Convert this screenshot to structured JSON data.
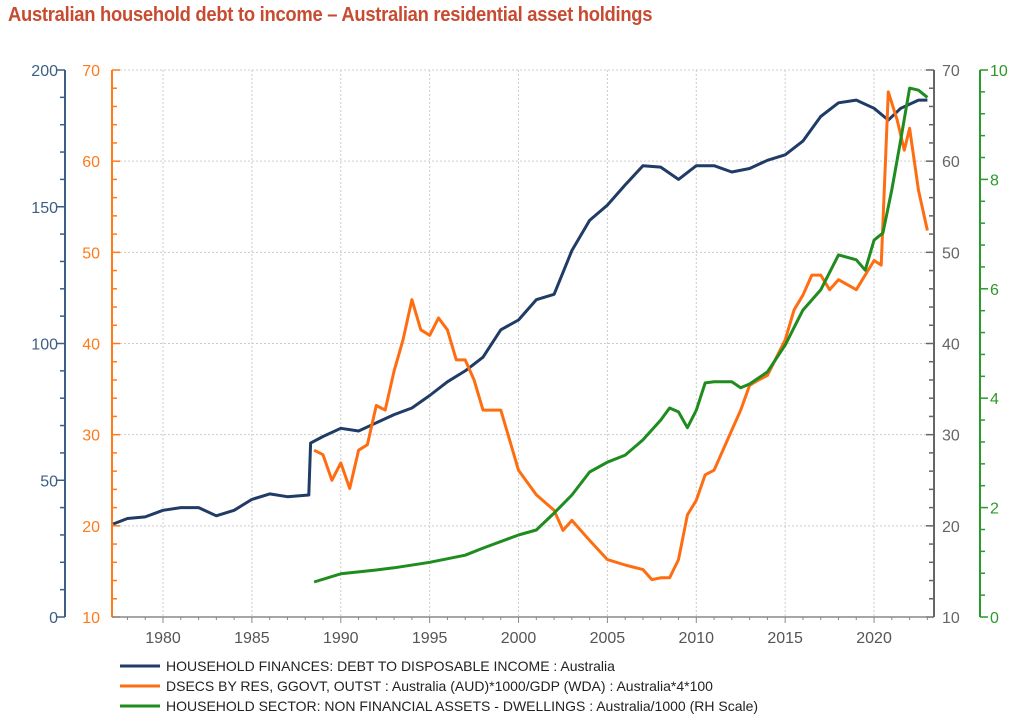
{
  "title": "Australian household debt to income – Australian residential asset holdings",
  "chart_data": {
    "type": "line",
    "title": "Australian household debt to income – Australian residential asset holdings",
    "xlim": [
      1977.13,
      2023.26
    ],
    "x_ticks": [
      "1980",
      "1985",
      "1990",
      "1995",
      "2000",
      "2005",
      "2010",
      "2015",
      "2020"
    ],
    "grid": true,
    "legend_placement": "bottom",
    "axes": {
      "left_outer": {
        "ylim": [
          0,
          200
        ],
        "ticks": [
          "0",
          "50",
          "100",
          "150",
          "200"
        ],
        "color": "#3d5f85"
      },
      "left_inner": {
        "ylim": [
          10,
          70
        ],
        "ticks": [
          "10",
          "20",
          "30",
          "40",
          "50",
          "60",
          "70"
        ],
        "color": "#ff7a1a"
      },
      "right_inner": {
        "ylim": [
          10,
          70
        ],
        "ticks": [
          "10",
          "20",
          "30",
          "40",
          "50",
          "60",
          "70"
        ],
        "color": "#666666"
      },
      "right_outer": {
        "ylim": [
          0,
          10
        ],
        "ticks": [
          "0",
          "2",
          "4",
          "6",
          "8",
          "10"
        ],
        "color": "#2a9a2a"
      }
    },
    "series": [
      {
        "name": "HOUSEHOLD FINANCES: DEBT TO DISPOSABLE INCOME : Australia",
        "axis": "left_outer",
        "color": "#1f3b66",
        "x": [
          1977.2,
          1978,
          1979,
          1980,
          1981,
          1982,
          1983,
          1984,
          1985,
          1986,
          1987,
          1988.2,
          1988.3,
          1989,
          1990,
          1991,
          1992,
          1993,
          1994,
          1995,
          1996,
          1997,
          1998,
          1999,
          2000,
          2001,
          2002,
          2003,
          2004,
          2005,
          2006,
          2007,
          2008,
          2009,
          2010,
          2011,
          2012,
          2013,
          2014,
          2015,
          2016,
          2017,
          2018,
          2019,
          2020,
          2020.8,
          2021.5,
          2022.5,
          2023
        ],
        "y": [
          34,
          36,
          36.6,
          39,
          40,
          40,
          37,
          39,
          43,
          45,
          44,
          44.6,
          63.6,
          66,
          69,
          68,
          71,
          74,
          76.4,
          81,
          86,
          90,
          95,
          105,
          108.6,
          116,
          118,
          134,
          145,
          150.6,
          158,
          165,
          164.5,
          160,
          165,
          165,
          162.7,
          164,
          167,
          169,
          174,
          183,
          188,
          189,
          186,
          181.7,
          186,
          189,
          189
        ]
      },
      {
        "name": "DSECS BY RES, GGOVT, OUTST : Australia (AUD)*1000/GDP (WDA) : Australia*4*100",
        "axis": "left_inner",
        "color": "#ff6d12",
        "x": [
          1988.5,
          1989,
          1989.5,
          1990,
          1990.5,
          1991,
          1991.5,
          1992,
          1992.5,
          1993,
          1993.5,
          1994,
          1994.5,
          1995,
          1995.5,
          1996,
          1996.5,
          1997,
          1997.5,
          1998,
          1999,
          2000,
          2001,
          2002,
          2002.5,
          2003,
          2004,
          2005,
          2006,
          2007,
          2007.5,
          2008,
          2008.5,
          2009,
          2009.5,
          2010,
          2010.5,
          2011,
          2012,
          2012.5,
          2013,
          2013.5,
          2014,
          2015,
          2015.5,
          2016,
          2016.5,
          2017,
          2017.5,
          2018,
          2019,
          2020,
          2020.4,
          2020.8,
          2021.3,
          2021.7,
          2022,
          2022.5,
          2023
        ],
        "y": [
          28.3,
          27.8,
          25,
          26.9,
          24.1,
          28.3,
          28.9,
          33.2,
          32.7,
          37,
          40.4,
          44.8,
          41.5,
          40.9,
          42.8,
          41.5,
          38.2,
          38.2,
          36,
          32.7,
          32.7,
          26.1,
          23.4,
          21.7,
          19.5,
          20.6,
          18.4,
          16.3,
          15.7,
          15.2,
          14.1,
          14.3,
          14.3,
          16.3,
          21.2,
          22.8,
          25.6,
          26.1,
          30.5,
          32.7,
          35.4,
          36,
          36.5,
          40.4,
          43.7,
          45.3,
          47.5,
          47.5,
          45.9,
          47,
          45.9,
          49.1,
          48.6,
          67.6,
          64.5,
          61.2,
          63.6,
          56.8,
          52.4
        ]
      },
      {
        "name": "HOUSEHOLD SECTOR: NON FINANCIAL ASSETS - DWELLINGS : Australia/1000 (RH Scale)",
        "axis": "right_outer",
        "color": "#1e8c1e",
        "x": [
          1988.5,
          1990,
          1992,
          1993,
          1995,
          1997,
          1998,
          2000,
          2001,
          2002,
          2003,
          2004,
          2005,
          2006,
          2007,
          2008,
          2008.5,
          2009,
          2009.5,
          2010,
          2010.5,
          2011,
          2012,
          2012.5,
          2013,
          2014,
          2015,
          2016,
          2017,
          2018,
          2019,
          2019.5,
          2020,
          2020.5,
          2021,
          2021.5,
          2022,
          2022.5,
          2023
        ],
        "y": [
          0.64,
          0.79,
          0.86,
          0.9,
          1.0,
          1.13,
          1.26,
          1.5,
          1.59,
          1.9,
          2.23,
          2.65,
          2.83,
          2.96,
          3.24,
          3.6,
          3.82,
          3.75,
          3.46,
          3.78,
          4.28,
          4.3,
          4.3,
          4.19,
          4.26,
          4.48,
          4.97,
          5.61,
          5.98,
          6.62,
          6.53,
          6.34,
          6.89,
          7.02,
          7.81,
          8.72,
          9.67,
          9.63,
          9.5
        ]
      }
    ]
  }
}
